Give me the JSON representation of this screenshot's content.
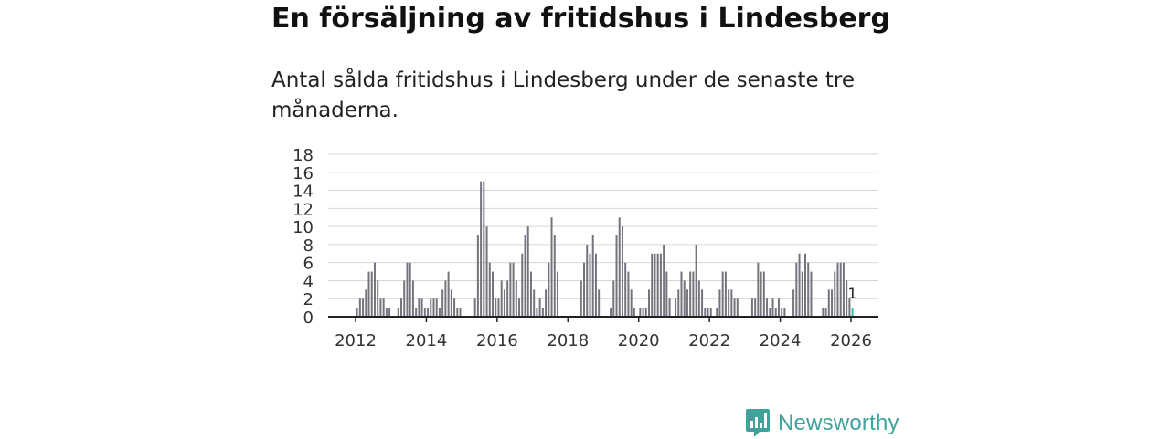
{
  "header": {
    "title": "En försäljning av fritidshus i Lindesberg",
    "subtitle": "Antal sålda fritidshus i Lindesberg under de senaste tre månaderna."
  },
  "chart_data": {
    "type": "bar",
    "title": "En försäljning av fritidshus i Lindesberg",
    "subtitle": "Antal sålda fritidshus i Lindesberg under de senaste tre månaderna.",
    "xlabel": "",
    "ylabel": "",
    "frequency": "monthly",
    "start": "2012-01",
    "end": "2026-01",
    "ylim": [
      0,
      18
    ],
    "yticks": [
      "0",
      "2",
      "4",
      "6",
      "8",
      "10",
      "12",
      "14",
      "16",
      "18"
    ],
    "xticks": [
      {
        "label": "2012",
        "date": "2012-01"
      },
      {
        "label": "2014",
        "date": "2014-01"
      },
      {
        "label": "2016",
        "date": "2016-01"
      },
      {
        "label": "2018",
        "date": "2018-01"
      },
      {
        "label": "2020",
        "date": "2020-01"
      },
      {
        "label": "2022",
        "date": "2022-01"
      },
      {
        "label": "2024",
        "date": "2024-01"
      },
      {
        "label": "2026",
        "date": "2026-01"
      }
    ],
    "grid": true,
    "colors": {
      "bar": "#75747d",
      "highlight": "#3fb8ad",
      "grid": "#d6d6d6",
      "axis": "#222222"
    },
    "highlight_label": "1",
    "series": [
      {
        "name": "Antal sålda fritidshus",
        "values": [
          1,
          2,
          2,
          3,
          5,
          5,
          6,
          4,
          2,
          2,
          1,
          1,
          0,
          0,
          1,
          2,
          4,
          6,
          6,
          4,
          1,
          2,
          2,
          1,
          1,
          2,
          2,
          2,
          1,
          3,
          4,
          5,
          3,
          2,
          1,
          1,
          0,
          0,
          0,
          0,
          2,
          9,
          15,
          15,
          10,
          6,
          5,
          2,
          2,
          4,
          3,
          4,
          6,
          6,
          4,
          2,
          7,
          9,
          10,
          5,
          3,
          1,
          2,
          1,
          3,
          6,
          11,
          9,
          5,
          0,
          0,
          0,
          0,
          0,
          0,
          0,
          4,
          6,
          8,
          7,
          9,
          7,
          3,
          0,
          0,
          0,
          1,
          4,
          9,
          11,
          10,
          6,
          5,
          3,
          1,
          0,
          1,
          1,
          1,
          3,
          7,
          7,
          7,
          7,
          8,
          5,
          2,
          0,
          2,
          3,
          5,
          4,
          3,
          5,
          5,
          8,
          4,
          3,
          1,
          1,
          1,
          0,
          1,
          3,
          5,
          5,
          3,
          3,
          2,
          2,
          0,
          0,
          0,
          0,
          2,
          2,
          6,
          5,
          5,
          2,
          1,
          2,
          1,
          2,
          1,
          1,
          0,
          0,
          3,
          6,
          7,
          5,
          7,
          6,
          5,
          0,
          0,
          0,
          1,
          1,
          3,
          3,
          5,
          6,
          6,
          6,
          4,
          2,
          1
        ]
      }
    ]
  },
  "brand": {
    "name": "Newsworthy",
    "icon": "newsworthy-logo-icon",
    "color": "#3fa39c"
  }
}
